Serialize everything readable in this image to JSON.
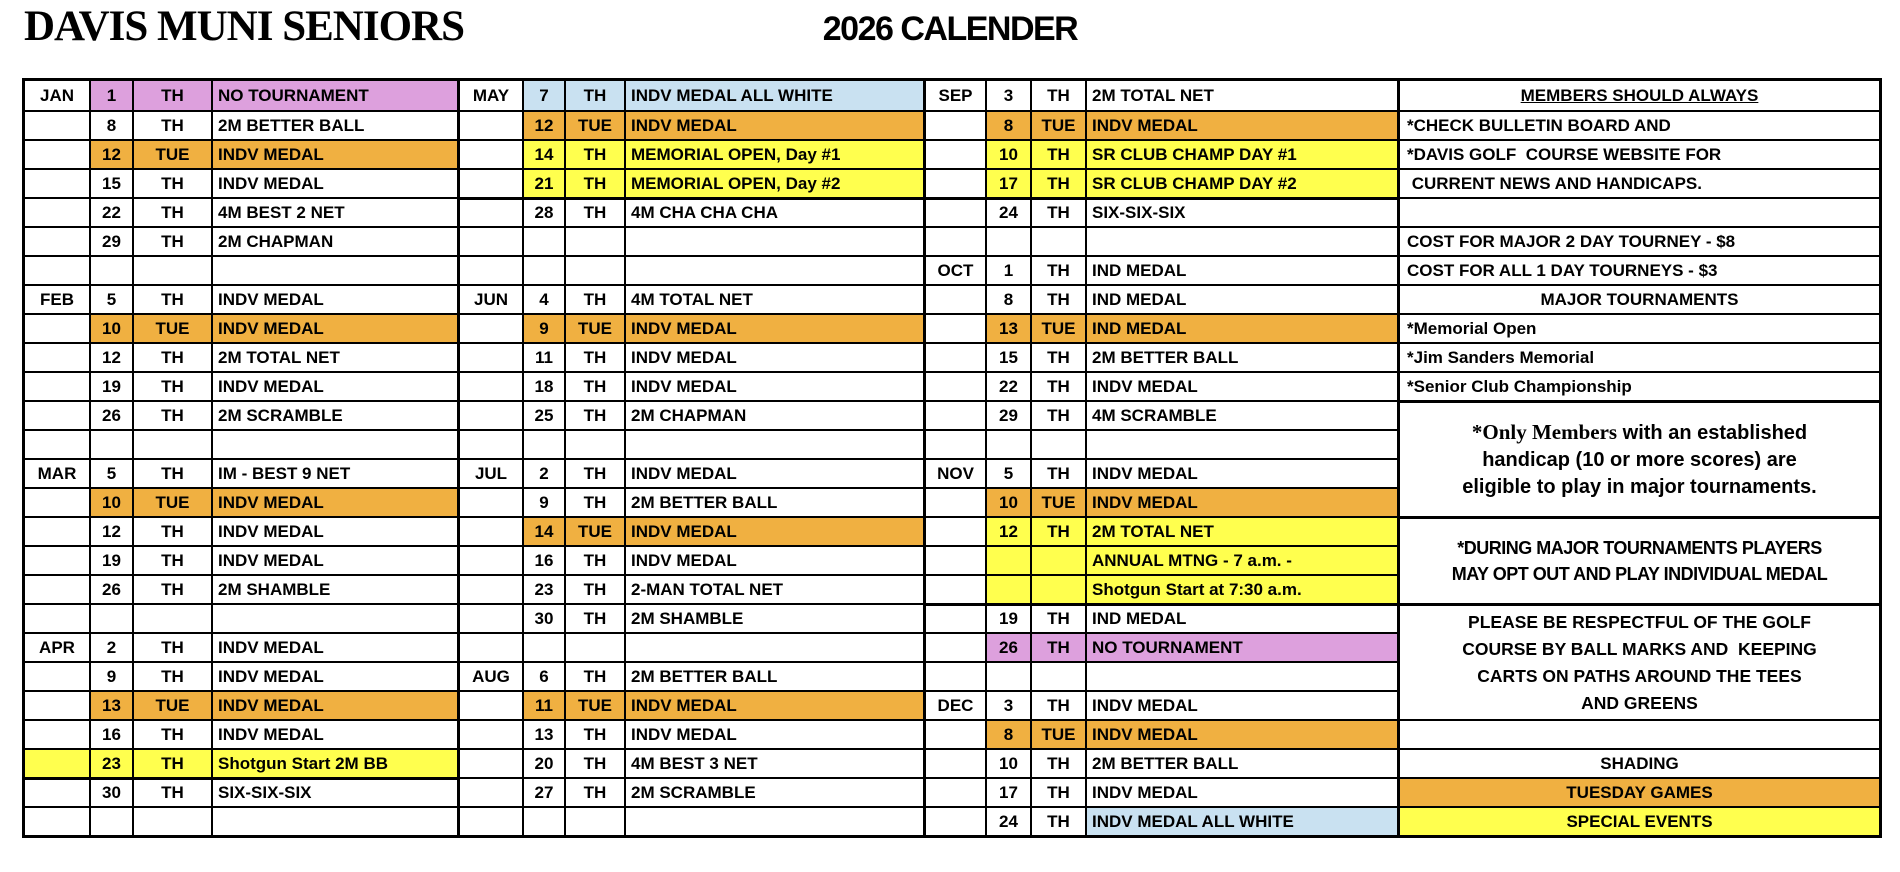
{
  "header": {
    "club_title": "DAVIS MUNI SENIORS",
    "year_title": "2026 CALENDER"
  },
  "colors": {
    "tuesday_games": "#F0B041",
    "special_events": "#FFFF4E",
    "no_tournament": "#DDA0DD",
    "all_white": "#C9E1F1"
  },
  "groups": [
    [
      {
        "m": "JAN",
        "d": "1",
        "w": "TH",
        "e": "NO TOURNAMENT",
        "c": "plum"
      },
      {
        "d": "8",
        "w": "TH",
        "e": "2M BETTER BALL"
      },
      {
        "d": "12",
        "w": "TUE",
        "e": "INDV MEDAL",
        "c": "tue"
      },
      {
        "d": "15",
        "w": "TH",
        "e": "INDV MEDAL"
      },
      {
        "d": "22",
        "w": "TH",
        "e": "4M BEST 2 NET"
      },
      {
        "d": "29",
        "w": "TH",
        "e": "2M CHAPMAN"
      },
      {
        "d": "",
        "w": "",
        "e": ""
      },
      {
        "m": "FEB",
        "d": "5",
        "w": "TH",
        "e": "INDV MEDAL"
      },
      {
        "d": "10",
        "w": "TUE",
        "e": "INDV MEDAL",
        "c": "tue"
      },
      {
        "d": "12",
        "w": "TH",
        "e": "2M TOTAL NET"
      },
      {
        "d": "19",
        "w": "TH",
        "e": "INDV MEDAL"
      },
      {
        "d": "26",
        "w": "TH",
        "e": "2M SCRAMBLE"
      },
      {
        "d": "",
        "w": "",
        "e": ""
      },
      {
        "m": "MAR",
        "d": "5",
        "w": "TH",
        "e": "IM - BEST 9 NET"
      },
      {
        "d": "10",
        "w": "TUE",
        "e": "INDV MEDAL",
        "c": "tue"
      },
      {
        "d": "12",
        "w": "TH",
        "e": "INDV MEDAL"
      },
      {
        "d": "19",
        "w": "TH",
        "e": "INDV MEDAL"
      },
      {
        "d": "26",
        "w": "TH",
        "e": "2M SHAMBLE"
      },
      {
        "d": "",
        "w": "",
        "e": ""
      },
      {
        "m": "APR",
        "d": "2",
        "w": "TH",
        "e": "INDV MEDAL"
      },
      {
        "d": "9",
        "w": "TH",
        "e": "INDV MEDAL"
      },
      {
        "d": "13",
        "w": "TUE",
        "e": "INDV MEDAL",
        "c": "tue"
      },
      {
        "d": "16",
        "w": "TH",
        "e": "INDV MEDAL"
      },
      {
        "d": "23",
        "w": "TH",
        "e": "Shotgun Start 2M BB",
        "c": "yel",
        "mc": "yel"
      },
      {
        "d": "30",
        "w": "TH",
        "e": "SIX-SIX-SIX",
        "tt": true
      },
      {
        "d": "",
        "w": "",
        "e": ""
      }
    ],
    [
      {
        "m": "MAY",
        "d": "7",
        "w": "TH",
        "e": "INDV MEDAL ALL WHITE",
        "c": "blu"
      },
      {
        "d": "12",
        "w": "TUE",
        "e": "INDV MEDAL",
        "c": "tue"
      },
      {
        "d": "14",
        "w": "TH",
        "e": "MEMORIAL OPEN, Day #1",
        "c": "yel"
      },
      {
        "d": "21",
        "w": "TH",
        "e": "MEMORIAL OPEN, Day #2",
        "c": "yel"
      },
      {
        "d": "28",
        "w": "TH",
        "e": "4M CHA CHA CHA",
        "tt": true
      },
      {
        "d": "",
        "w": "",
        "e": ""
      },
      {
        "d": "",
        "w": "",
        "e": ""
      },
      {
        "m": "JUN",
        "d": "4",
        "w": "TH",
        "e": "4M TOTAL NET"
      },
      {
        "d": "9",
        "w": "TUE",
        "e": "INDV MEDAL",
        "c": "tue"
      },
      {
        "d": "11",
        "w": "TH",
        "e": "INDV MEDAL"
      },
      {
        "d": "18",
        "w": "TH",
        "e": "INDV MEDAL"
      },
      {
        "d": "25",
        "w": "TH",
        "e": "2M CHAPMAN"
      },
      {
        "d": "",
        "w": "",
        "e": ""
      },
      {
        "m": "JUL",
        "d": "2",
        "w": "TH",
        "e": "INDV MEDAL"
      },
      {
        "d": "9",
        "w": "TH",
        "e": "2M BETTER BALL"
      },
      {
        "d": "14",
        "w": "TUE",
        "e": "INDV MEDAL",
        "c": "tue"
      },
      {
        "d": "16",
        "w": "TH",
        "e": "INDV MEDAL"
      },
      {
        "d": "23",
        "w": "TH",
        "e": "2-MAN TOTAL NET"
      },
      {
        "d": "30",
        "w": "TH",
        "e": "2M SHAMBLE"
      },
      {
        "d": "",
        "w": "",
        "e": ""
      },
      {
        "m": "AUG",
        "d": "6",
        "w": "TH",
        "e": "2M BETTER BALL"
      },
      {
        "d": "11",
        "w": "TUE",
        "e": "INDV MEDAL",
        "c": "tue"
      },
      {
        "d": "13",
        "w": "TH",
        "e": "INDV MEDAL"
      },
      {
        "d": "20",
        "w": "TH",
        "e": "4M BEST 3 NET"
      },
      {
        "d": "27",
        "w": "TH",
        "e": "2M SCRAMBLE"
      },
      {
        "d": "",
        "w": "",
        "e": ""
      }
    ],
    [
      {
        "m": "SEP",
        "d": "3",
        "w": "TH",
        "e": "2M TOTAL NET"
      },
      {
        "d": "8",
        "w": "TUE",
        "e": "INDV MEDAL",
        "c": "tue"
      },
      {
        "d": "10",
        "w": "TH",
        "e": "SR CLUB CHAMP DAY #1",
        "c": "yel"
      },
      {
        "d": "17",
        "w": "TH",
        "e": "SR CLUB CHAMP DAY #2",
        "c": "yel"
      },
      {
        "d": "24",
        "w": "TH",
        "e": "SIX-SIX-SIX",
        "tt": true
      },
      {
        "d": "",
        "w": "",
        "e": ""
      },
      {
        "m": "OCT",
        "d": "1",
        "w": "TH",
        "e": "IND MEDAL"
      },
      {
        "d": "8",
        "w": "TH",
        "e": "IND MEDAL"
      },
      {
        "d": "13",
        "w": "TUE",
        "e": "IND MEDAL",
        "c": "tue"
      },
      {
        "d": "15",
        "w": "TH",
        "e": "2M BETTER BALL"
      },
      {
        "d": "22",
        "w": "TH",
        "e": "INDV MEDAL"
      },
      {
        "d": "29",
        "w": "TH",
        "e": "4M SCRAMBLE"
      },
      {
        "d": "",
        "w": "",
        "e": ""
      },
      {
        "m": "NOV",
        "d": "5",
        "w": "TH",
        "e": "INDV MEDAL"
      },
      {
        "d": "10",
        "w": "TUE",
        "e": "INDV MEDAL",
        "c": "tue"
      },
      {
        "d": "12",
        "w": "TH",
        "e": "2M TOTAL NET",
        "c": "yel"
      },
      {
        "d": "",
        "w": "",
        "e": "ANNUAL MTNG - 7 a.m. -",
        "c": "yel"
      },
      {
        "d": "",
        "w": "",
        "e": "Shotgun Start at 7:30 a.m.",
        "c": "yel"
      },
      {
        "d": "19",
        "w": "TH",
        "e": "IND MEDAL",
        "tt": true
      },
      {
        "d": "26",
        "w": "TH",
        "e": "NO TOURNAMENT",
        "c": "plum"
      },
      {
        "d": "",
        "w": "",
        "e": ""
      },
      {
        "m": "DEC",
        "d": "3",
        "w": "TH",
        "e": "INDV MEDAL"
      },
      {
        "d": "8",
        "w": "TUE",
        "e": "INDV MEDAL",
        "c": "tue"
      },
      {
        "d": "10",
        "w": "TH",
        "e": "2M BETTER BALL"
      },
      {
        "d": "17",
        "w": "TH",
        "e": "INDV MEDAL"
      },
      {
        "d": "24",
        "w": "TH",
        "e": "INDV MEDAL ALL WHITE",
        "c": "blu",
        "cs": "e"
      }
    ]
  ],
  "notes": [
    {
      "r": 1,
      "s": 1,
      "align": "c",
      "underline": true,
      "t": "MEMBERS SHOULD ALWAYS",
      "name": "members-should-always-heading"
    },
    {
      "r": 2,
      "s": 1,
      "align": "l",
      "t": "*CHECK BULLETIN BOARD AND",
      "name": "check-bulletin-note"
    },
    {
      "r": 3,
      "s": 1,
      "align": "l",
      "t": "*DAVIS GOLF  COURSE WEBSITE FOR",
      "name": "davis-website-note"
    },
    {
      "r": 4,
      "s": 1,
      "align": "l",
      "t": " CURRENT NEWS AND HANDICAPS.",
      "name": "current-news-note"
    },
    {
      "r": 5,
      "s": 1,
      "align": "l",
      "t": "",
      "name": "blank-note-cell"
    },
    {
      "r": 6,
      "s": 1,
      "align": "l",
      "t": "COST FOR MAJOR 2 DAY TOURNEY - $8",
      "name": "cost-major-tourney-note"
    },
    {
      "r": 7,
      "s": 1,
      "align": "l",
      "t": "COST FOR ALL 1 DAY TOURNEYS - $3",
      "name": "cost-one-day-tourney-note"
    },
    {
      "r": 8,
      "s": 1,
      "align": "c",
      "t": "MAJOR TOURNAMENTS",
      "name": "major-tournaments-heading"
    },
    {
      "r": 9,
      "s": 1,
      "align": "l",
      "t": "*Memorial Open",
      "name": "memorial-open-item"
    },
    {
      "r": 10,
      "s": 1,
      "align": "l",
      "t": "*Jim Sanders Memorial",
      "name": "jim-sanders-item"
    },
    {
      "r": 11,
      "s": 1,
      "align": "l",
      "t": "*Senior Club Championship",
      "name": "senior-club-item"
    },
    {
      "r": 12,
      "s": 4,
      "align": "c",
      "style": "members-note",
      "tt": true,
      "name": "members-eligibility-note",
      "lines": [
        [
          "*Only Members",
          " with an established"
        ],
        [
          "",
          "handicap (10 or more scores) are"
        ],
        [
          "",
          "eligible to play in major tournaments."
        ]
      ]
    },
    {
      "r": 16,
      "s": 3,
      "align": "c",
      "style": "during-note",
      "tt": true,
      "name": "during-tournaments-note",
      "lines": [
        [
          "",
          "*DURING MAJOR TOURNAMENTS PLAYERS"
        ],
        [
          "",
          "MAY OPT OUT AND PLAY INDIVIDUAL MEDAL"
        ]
      ]
    },
    {
      "r": 19,
      "s": 4,
      "align": "c",
      "style": "respect-note",
      "tt": true,
      "name": "respect-course-note",
      "lines": [
        [
          "",
          "PLEASE BE RESPECTFUL OF THE GOLF"
        ],
        [
          "",
          "COURSE BY BALL MARKS AND  KEEPING"
        ],
        [
          "",
          "CARTS ON PATHS AROUND THE TEES"
        ],
        [
          "",
          "AND GREENS"
        ]
      ]
    },
    {
      "r": 23,
      "s": 1,
      "align": "l",
      "t": "",
      "name": "blank-note-cell"
    },
    {
      "r": 24,
      "s": 1,
      "align": "c",
      "t": "SHADING",
      "name": "shading-heading"
    },
    {
      "r": 25,
      "s": 1,
      "align": "c",
      "bg": "tue",
      "t": "TUESDAY GAMES",
      "name": "legend-tuesday-games"
    },
    {
      "r": 26,
      "s": 1,
      "align": "c",
      "bg": "yel",
      "t": "SPECIAL EVENTS",
      "name": "legend-special-events"
    }
  ]
}
